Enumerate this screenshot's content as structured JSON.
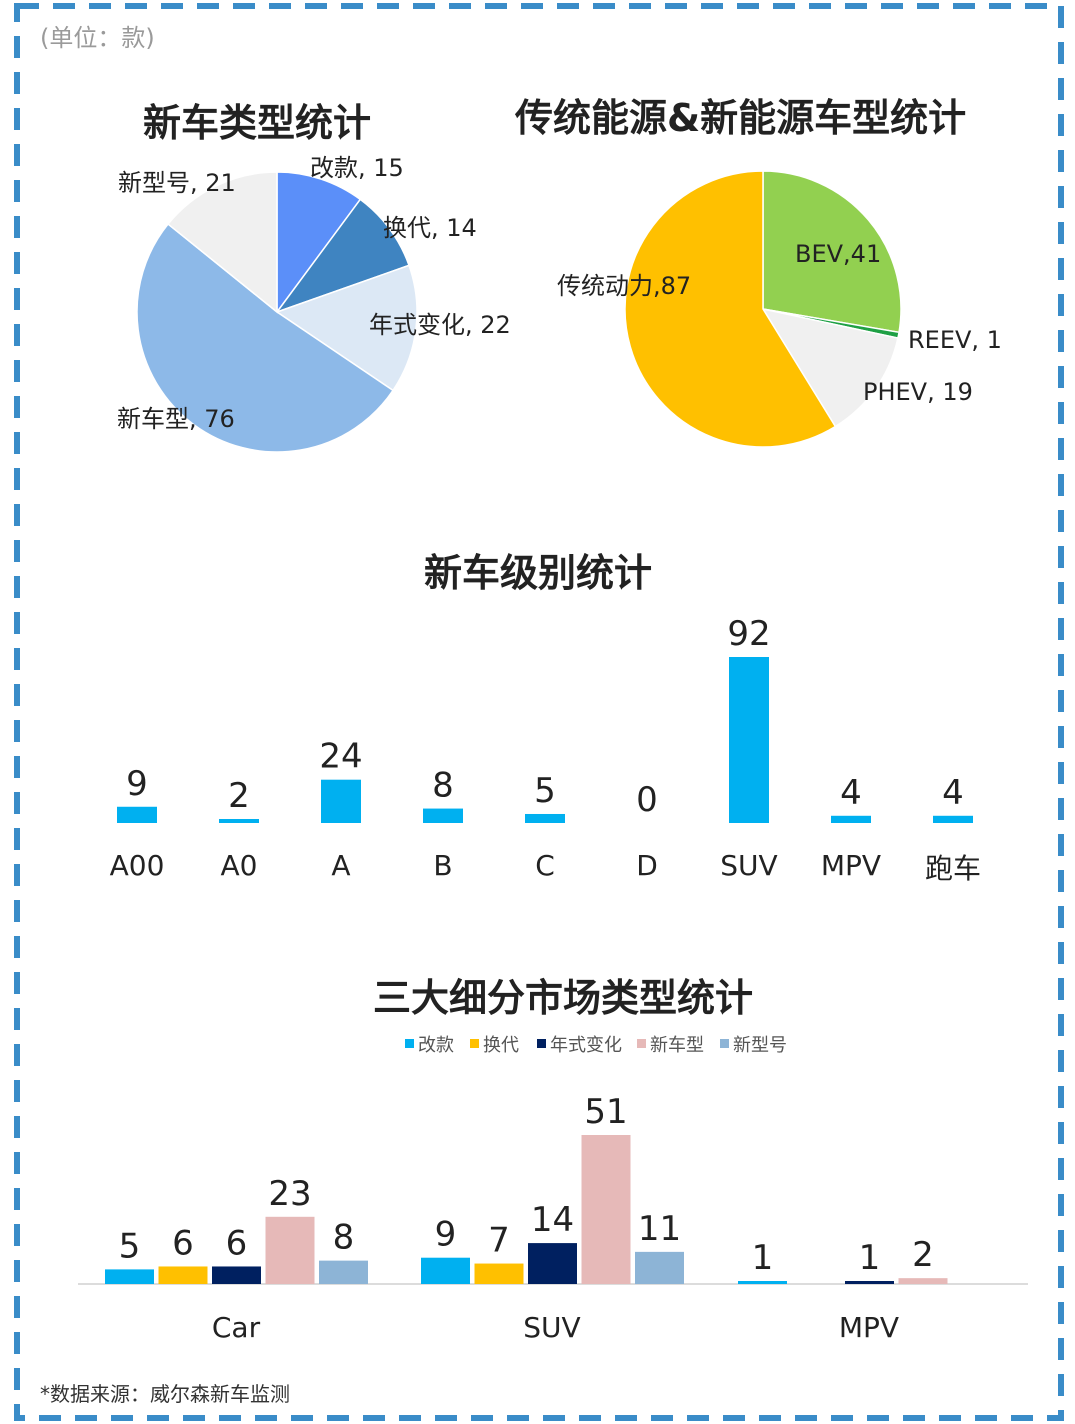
{
  "unit_label": "(单位：款)",
  "footnote": "*数据来源：威尔森新车监测",
  "colors": {
    "frame": "#3a8cc8"
  },
  "chart_data": [
    {
      "type": "pie",
      "title": "新车类型统计",
      "slices": [
        {
          "label": "改款, 15",
          "name": "改款",
          "value": 15,
          "color": "#5b8ff9"
        },
        {
          "label": "换代, 14",
          "name": "换代",
          "value": 14,
          "color": "#3f84c1"
        },
        {
          "label": "年式变化, 22",
          "name": "年式变化",
          "value": 22,
          "color": "#dce8f5"
        },
        {
          "label": "新车型, 76",
          "name": "新车型",
          "value": 76,
          "color": "#8db9e8"
        },
        {
          "label": "新型号, 21",
          "name": "新型号",
          "value": 21,
          "color": "#f0f0f0"
        }
      ]
    },
    {
      "type": "pie",
      "title": "传统能源&新能源车型统计",
      "slices": [
        {
          "label": "BEV,41",
          "name": "BEV",
          "value": 41,
          "color": "#92d050"
        },
        {
          "label": "REEV, 1",
          "name": "REEV",
          "value": 1,
          "color": "#1fa045"
        },
        {
          "label": "PHEV, 19",
          "name": "PHEV",
          "value": 19,
          "color": "#f0f0f0"
        },
        {
          "label": "传统动力,87",
          "name": "传统动力",
          "value": 87,
          "color": "#ffc000"
        }
      ]
    },
    {
      "type": "bar",
      "title": "新车级别统计",
      "categories": [
        "A00",
        "A0",
        "A",
        "B",
        "C",
        "D",
        "SUV",
        "MPV",
        "跑车"
      ],
      "values": [
        9,
        2,
        24,
        8,
        5,
        0,
        92,
        4,
        4
      ],
      "value_labels": [
        "9",
        "2",
        "24",
        "8",
        "5",
        "0",
        "92",
        "4",
        "4"
      ],
      "color": "#00b0f0",
      "ylim": [
        0,
        92
      ]
    },
    {
      "type": "bar",
      "title": "三大细分市场类型统计",
      "categories": [
        "Car",
        "SUV",
        "MPV"
      ],
      "legend_position": "top",
      "series": [
        {
          "name": "改款",
          "color": "#00b0f0",
          "values": [
            5,
            9,
            1
          ],
          "value_labels": [
            "5",
            "9",
            "1"
          ]
        },
        {
          "name": "换代",
          "color": "#ffc000",
          "values": [
            6,
            7,
            0
          ],
          "value_labels": [
            "6",
            "7",
            ""
          ]
        },
        {
          "name": "年式变化",
          "color": "#002060",
          "values": [
            6,
            14,
            1
          ],
          "value_labels": [
            "6",
            "14",
            "1"
          ]
        },
        {
          "name": "新车型",
          "color": "#e6b9b8",
          "values": [
            23,
            51,
            2
          ],
          "value_labels": [
            "23",
            "51",
            "2"
          ]
        },
        {
          "name": "新型号",
          "color": "#8db4d6",
          "values": [
            8,
            11,
            0
          ],
          "value_labels": [
            "8",
            "11",
            ""
          ]
        }
      ],
      "ylim": [
        0,
        51
      ]
    }
  ]
}
